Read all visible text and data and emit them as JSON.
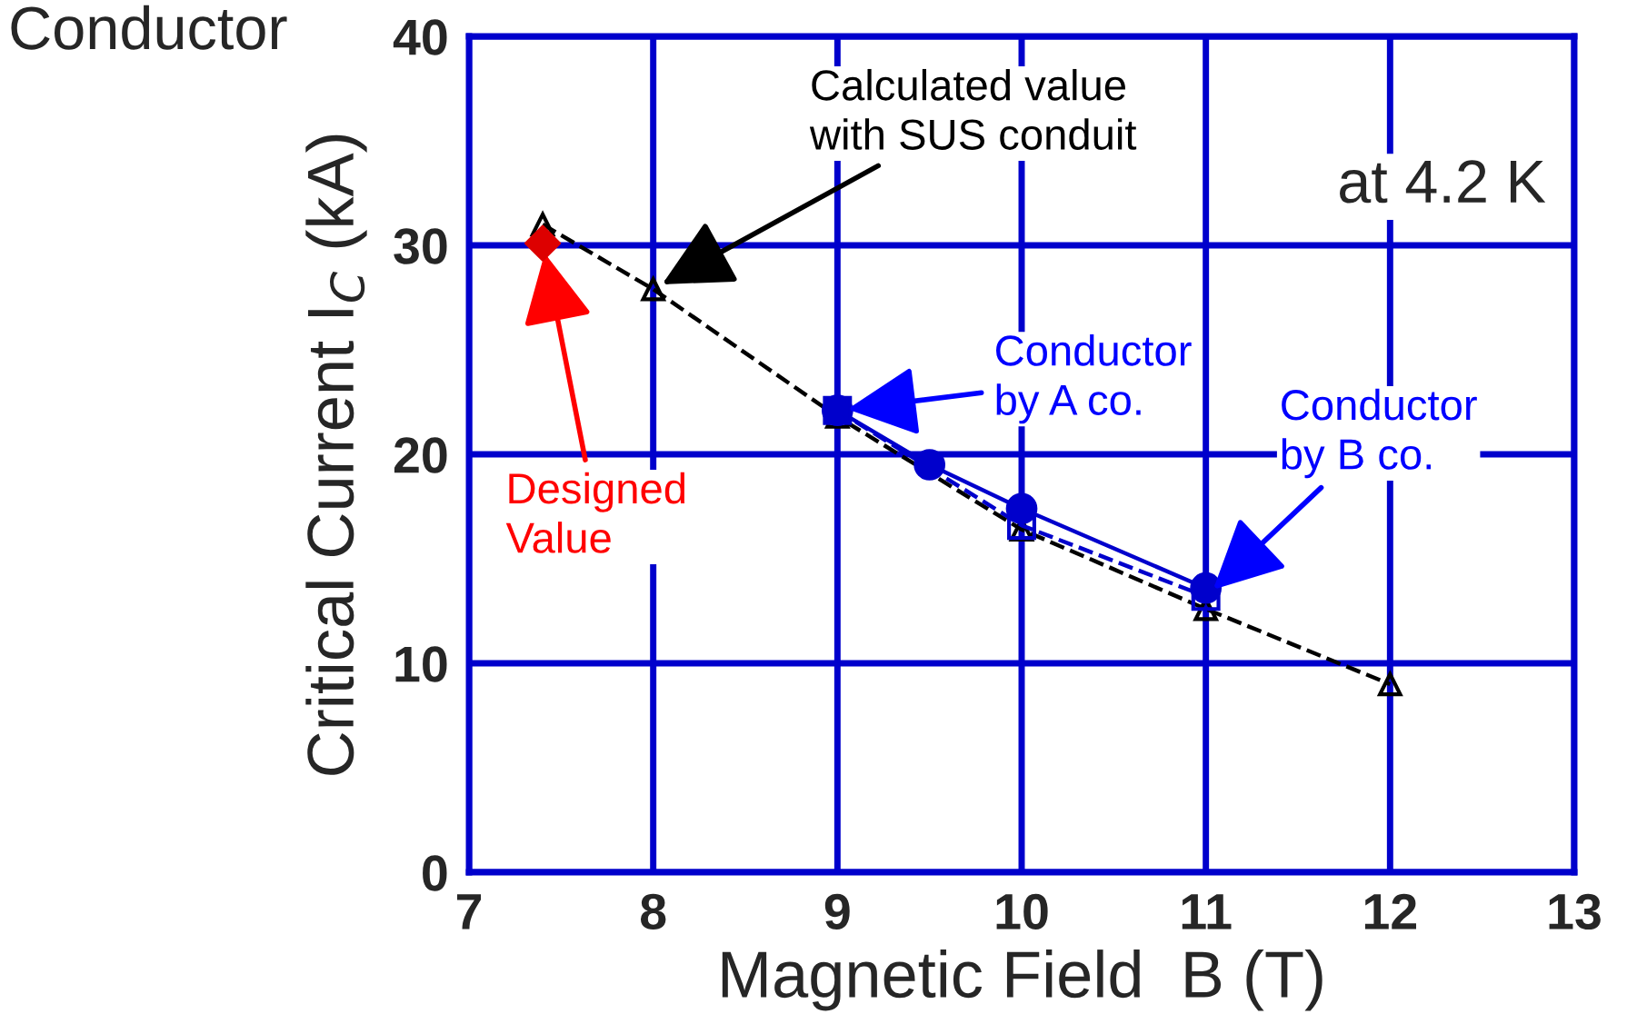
{
  "chart_data": {
    "type": "line",
    "xlabel": "Magnetic Field  B (T)",
    "ylabel": "Critical Current I$_{C}$ (kA)",
    "xlim": [
      7,
      13
    ],
    "ylim": [
      0,
      40
    ],
    "xticks": [
      7,
      8,
      9,
      10,
      11,
      12,
      13
    ],
    "yticks": [
      0,
      10,
      20,
      30,
      40
    ],
    "grid": true,
    "series": [
      {
        "color": "#000000",
        "marker": "triangle",
        "line_style": "dashed",
        "x": [
          7.4,
          8,
          9,
          10,
          11,
          12
        ],
        "values": [
          31,
          27.9,
          21.8,
          16.4,
          12.6,
          9.0
        ]
      },
      {
        "color": "#0000cc",
        "marker": "circle",
        "line_style": "solid",
        "x": [
          9,
          9.5,
          10,
          11
        ],
        "values": [
          22.1,
          19.5,
          17.4,
          13.6
        ]
      },
      {
        "color": "#0000cc",
        "marker": "square",
        "line_style": "dashed",
        "x": [
          9,
          10,
          11
        ],
        "values": [
          22.1,
          16.6,
          13.2
        ]
      },
      {
        "type": "scatter",
        "color": "#dd0000",
        "marker": "diamond",
        "x": [
          7.4
        ],
        "values": [
          30.1
        ]
      }
    ],
    "annotations": [
      "Conductor",
      "at 4.2 K",
      {
        "text": "Calculated value\nwith SUS conduit",
        "x": 8,
        "y": 27.9
      },
      {
        "text": "Conductor\nby A co.",
        "x": 9,
        "y": 22.1
      },
      {
        "text": "Conductor\nby B co.",
        "x": 11,
        "y": 13.2
      },
      {
        "text": "Designed\nValue",
        "x": 7.4,
        "y": 30.1
      }
    ]
  }
}
